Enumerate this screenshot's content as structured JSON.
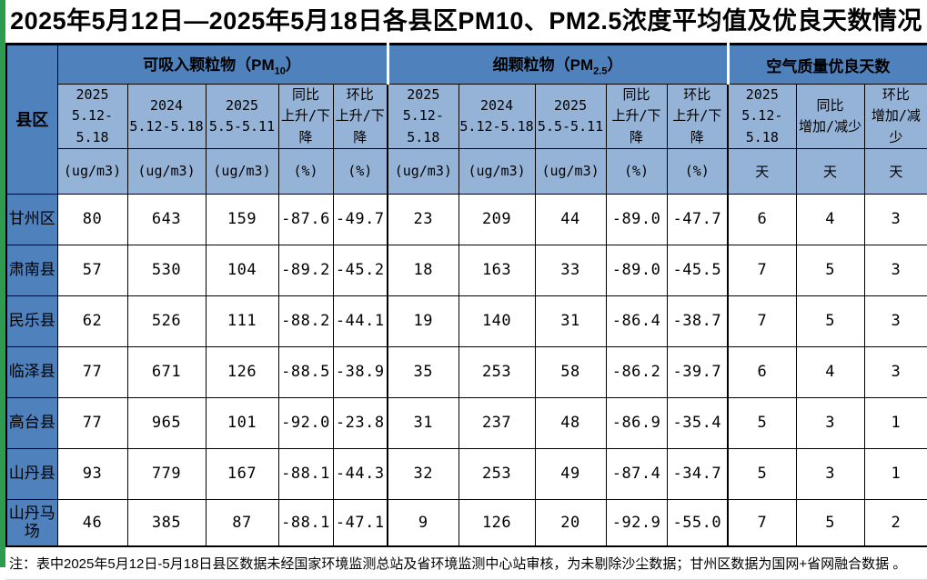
{
  "title": "2025年5月12日—2025年5月18日各县区PM10、PM2.5浓度平均值及优良天数情况",
  "footnote": "注：表中2025年5月12日-5月18日县区数据未经国家环境监测总站及省环境监测中心站审核，为未剔除沙尘数据；甘州区数据为国网+省网融合数据 。",
  "colors": {
    "header_dark_blue": "#4f81bd",
    "header_light_blue": "#95b3d7",
    "left_strip_green": "#2e9b51",
    "border": "#000000"
  },
  "table": {
    "corner_header": "县区",
    "groups": [
      {
        "prefix": "可吸入颗粒物（PM",
        "subscript": "10",
        "suffix": "）"
      },
      {
        "prefix": "细颗粒物（PM",
        "subscript": "2.5",
        "suffix": "）"
      },
      {
        "prefix": "空气质量优良天数",
        "subscript": "",
        "suffix": ""
      }
    ],
    "columns": [
      {
        "line1": "2025",
        "line2": "5.12-5.18",
        "unit": "(ug/m3)"
      },
      {
        "line1": "2024",
        "line2": "5.12-5.18",
        "unit": "(ug/m3)"
      },
      {
        "line1": "2025",
        "line2": "5.5-5.11",
        "unit": "(ug/m3)"
      },
      {
        "line1": "同比",
        "line2": "上升/下降",
        "unit": "(%)"
      },
      {
        "line1": "环比",
        "line2": "上升/下降",
        "unit": "(%)"
      },
      {
        "line1": "2025",
        "line2": "5.12-5.18",
        "unit": "(ug/m3)"
      },
      {
        "line1": "2024",
        "line2": "5.12-5.18",
        "unit": "(ug/m3)"
      },
      {
        "line1": "2025",
        "line2": "5.5-5.11",
        "unit": "(ug/m3)"
      },
      {
        "line1": "同比",
        "line2": "上升/下降",
        "unit": "(%)"
      },
      {
        "line1": "环比",
        "line2": "上升/下降",
        "unit": "(%)"
      },
      {
        "line1": "2025",
        "line2": "5.12-5.18",
        "unit": "天"
      },
      {
        "line1": "同比",
        "line2": "增加/减少",
        "unit": "天"
      },
      {
        "line1": "环比",
        "line2": "增加/减少",
        "unit": "天"
      }
    ],
    "rows": [
      {
        "region": "甘州区",
        "values": [
          "80",
          "643",
          "159",
          "-87.6",
          "-49.7",
          "23",
          "209",
          "44",
          "-89.0",
          "-47.7",
          "6",
          "4",
          "3"
        ]
      },
      {
        "region": "肃南县",
        "values": [
          "57",
          "530",
          "104",
          "-89.2",
          "-45.2",
          "18",
          "163",
          "33",
          "-89.0",
          "-45.5",
          "7",
          "5",
          "3"
        ]
      },
      {
        "region": "民乐县",
        "values": [
          "62",
          "526",
          "111",
          "-88.2",
          "-44.1",
          "19",
          "140",
          "31",
          "-86.4",
          "-38.7",
          "7",
          "5",
          "3"
        ]
      },
      {
        "region": "临泽县",
        "values": [
          "77",
          "671",
          "126",
          "-88.5",
          "-38.9",
          "35",
          "253",
          "58",
          "-86.2",
          "-39.7",
          "6",
          "4",
          "3"
        ]
      },
      {
        "region": "高台县",
        "values": [
          "77",
          "965",
          "101",
          "-92.0",
          "-23.8",
          "31",
          "237",
          "48",
          "-86.9",
          "-35.4",
          "5",
          "3",
          "1"
        ]
      },
      {
        "region": "山丹县",
        "values": [
          "93",
          "779",
          "167",
          "-88.1",
          "-44.3",
          "32",
          "253",
          "49",
          "-87.4",
          "-34.7",
          "5",
          "3",
          "1"
        ]
      },
      {
        "region": "山丹马场",
        "values": [
          "46",
          "385",
          "87",
          "-88.1",
          "-47.1",
          "9",
          "126",
          "20",
          "-92.9",
          "-55.0",
          "7",
          "5",
          "2"
        ]
      }
    ]
  },
  "chart_data": {
    "type": "table",
    "title": "2025年5月12日—2025年5月18日各县区PM10、PM2.5浓度平均值及优良天数情况",
    "columns": [
      "县区",
      "PM10 2025 5.12-5.18 (ug/m3)",
      "PM10 2024 5.12-5.18 (ug/m3)",
      "PM10 2025 5.5-5.11 (ug/m3)",
      "PM10 同比上升/下降 (%)",
      "PM10 环比上升/下降 (%)",
      "PM2.5 2025 5.12-5.18 (ug/m3)",
      "PM2.5 2024 5.12-5.18 (ug/m3)",
      "PM2.5 2025 5.5-5.11 (ug/m3)",
      "PM2.5 同比上升/下降 (%)",
      "PM2.5 环比上升/下降 (%)",
      "优良天数 2025 5.12-5.18 (天)",
      "优良天数 同比增加/减少 (天)",
      "优良天数 环比增加/减少 (天)"
    ],
    "rows": [
      [
        "甘州区",
        80,
        643,
        159,
        -87.6,
        -49.7,
        23,
        209,
        44,
        -89.0,
        -47.7,
        6,
        4,
        3
      ],
      [
        "肃南县",
        57,
        530,
        104,
        -89.2,
        -45.2,
        18,
        163,
        33,
        -89.0,
        -45.5,
        7,
        5,
        3
      ],
      [
        "民乐县",
        62,
        526,
        111,
        -88.2,
        -44.1,
        19,
        140,
        31,
        -86.4,
        -38.7,
        7,
        5,
        3
      ],
      [
        "临泽县",
        77,
        671,
        126,
        -88.5,
        -38.9,
        35,
        253,
        58,
        -86.2,
        -39.7,
        6,
        4,
        3
      ],
      [
        "高台县",
        77,
        965,
        101,
        -92.0,
        -23.8,
        31,
        237,
        48,
        -86.9,
        -35.4,
        5,
        3,
        1
      ],
      [
        "山丹县",
        93,
        779,
        167,
        -88.1,
        -44.3,
        32,
        253,
        49,
        -87.4,
        -34.7,
        5,
        3,
        1
      ],
      [
        "山丹马场",
        46,
        385,
        87,
        -88.1,
        -47.1,
        9,
        126,
        20,
        -92.9,
        -55.0,
        7,
        5,
        2
      ]
    ]
  }
}
